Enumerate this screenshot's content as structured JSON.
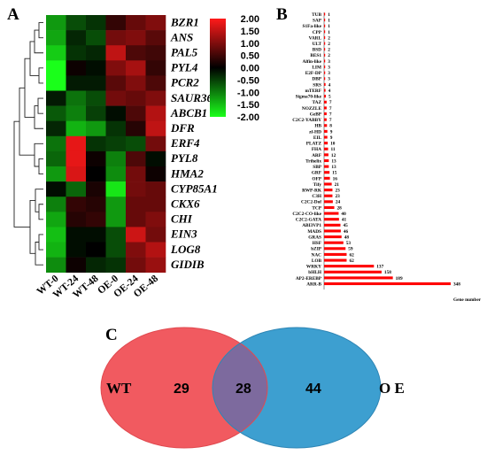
{
  "chart_data": [
    {
      "type": "heatmap",
      "panel_label": "A",
      "columns": [
        "WT-0",
        "WT-24",
        "WT-48",
        "OE-0",
        "OE-24",
        "OE-48"
      ],
      "rows": [
        "BZR1",
        "ANS",
        "PAL5",
        "PYL4",
        "PCR2",
        "SAUR36",
        "ABCB1",
        "DFR",
        "ERF4",
        "PYL8",
        "HMA2",
        "CYP85A1",
        "CKX6",
        "CHI",
        "EIN3",
        "LOG8",
        "GIDIB"
      ],
      "values": [
        [
          -1.2,
          -0.6,
          -0.4,
          0.4,
          0.8,
          1.0
        ],
        [
          -1.3,
          -0.3,
          -0.6,
          0.9,
          1.0,
          0.7
        ],
        [
          -1.6,
          -0.4,
          -0.3,
          1.5,
          0.6,
          0.5
        ],
        [
          -2.0,
          0.1,
          -0.1,
          1.0,
          1.3,
          0.4
        ],
        [
          -2.0,
          -0.2,
          -0.2,
          0.7,
          1.0,
          0.6
        ],
        [
          -0.2,
          -0.9,
          -0.6,
          0.9,
          0.8,
          1.0
        ],
        [
          -0.7,
          -1.0,
          -0.5,
          -0.1,
          0.6,
          1.4
        ],
        [
          -0.3,
          -1.4,
          -1.2,
          -0.4,
          0.3,
          1.5
        ],
        [
          -0.9,
          1.8,
          -0.4,
          -0.5,
          -0.6,
          0.9
        ],
        [
          -0.8,
          1.8,
          0.1,
          -1.0,
          0.6,
          -0.1
        ],
        [
          -1.2,
          1.7,
          0.0,
          -1.1,
          0.9,
          0.1
        ],
        [
          -0.1,
          -0.8,
          0.2,
          -1.8,
          0.9,
          0.8
        ],
        [
          -1.0,
          0.4,
          0.3,
          -1.2,
          0.8,
          0.8
        ],
        [
          -1.3,
          0.3,
          0.4,
          -1.2,
          0.8,
          1.0
        ],
        [
          -1.5,
          -0.1,
          -0.1,
          -0.6,
          1.6,
          0.9
        ],
        [
          -1.4,
          -0.1,
          0.0,
          -0.6,
          1.0,
          1.4
        ],
        [
          -1.1,
          0.1,
          -0.3,
          -0.4,
          0.9,
          1.2
        ]
      ],
      "colorbar": {
        "ticks": [
          "2.00",
          "1.50",
          "1.00",
          "0.50",
          "0.00",
          "-0.50",
          "-1.00",
          "-1.50",
          "-2.00"
        ],
        "range": [
          -2,
          2
        ],
        "colors": {
          "high": "#ff1a1a",
          "mid": "#000000",
          "low": "#1aff1a"
        }
      }
    },
    {
      "type": "bar",
      "panel_label": "B",
      "orientation": "horizontal",
      "categories": [
        "TUB",
        "SAP",
        "S1Fa-like",
        "CPP",
        "VARL",
        "ULT",
        "BSD",
        "BES1",
        "Alfin-like",
        "LIM",
        "E2F-DP",
        "DBP",
        "SRS",
        "mTERF",
        "Sigma70-like",
        "TAZ",
        "NOZZLE",
        "GeBP",
        "C2C2-YABBY",
        "HB",
        "zf-HD",
        "EIL",
        "PLATZ",
        "FHA",
        "ARF",
        "Trihelix",
        "SBP",
        "GRF",
        "OFP",
        "Tify",
        "RWP-RK",
        "C3H",
        "C2C2-Dof",
        "TCP",
        "C2C2-CO-like",
        "C2C2-GATA",
        "ABI3VP1",
        "MADS",
        "GRAS",
        "HSF",
        "bZIP",
        "NAC",
        "LOB",
        "WRKY",
        "bHLH",
        "AP2-EREBP",
        "ARR-B"
      ],
      "values": [
        1,
        1,
        1,
        1,
        2,
        2,
        2,
        2,
        3,
        3,
        3,
        3,
        4,
        4,
        5,
        7,
        7,
        7,
        7,
        8,
        9,
        9,
        10,
        11,
        12,
        13,
        13,
        15,
        16,
        21,
        23,
        23,
        24,
        28,
        40,
        41,
        45,
        46,
        48,
        53,
        59,
        62,
        62,
        137,
        158,
        189,
        348
      ],
      "xlabel": "Gene number",
      "bar_color": "#ff0000"
    },
    {
      "type": "venn",
      "panel_label": "C",
      "sets": [
        {
          "name": "WT",
          "only": "29",
          "color": "#f15a60"
        },
        {
          "name": "O E",
          "only": "44",
          "color": "#3d9fd0"
        }
      ],
      "intersection": "28",
      "overlap_color": "#7d6a9e"
    }
  ]
}
